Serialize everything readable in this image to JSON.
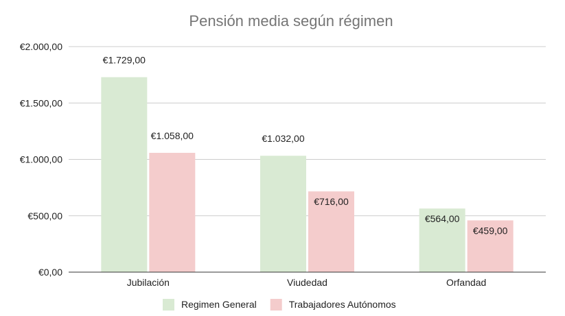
{
  "chart_data": {
    "type": "bar",
    "title": "Pensión media según régimen",
    "categories": [
      "Jubilación",
      "Viudedad",
      "Orfandad"
    ],
    "series": [
      {
        "name": "Regimen General",
        "values": [
          1729,
          1032,
          564
        ],
        "labels": [
          "€1.729,00",
          "€1.032,00",
          "€564,00"
        ],
        "color": "#d9ead3"
      },
      {
        "name": "Trabajadores Autónomos",
        "values": [
          1058,
          716,
          459
        ],
        "labels": [
          "€1.058,00",
          "€716,00",
          "€459,00"
        ],
        "color": "#f4cccc"
      }
    ],
    "ylim": [
      0,
      2000
    ],
    "yticks": [
      0,
      500,
      1000,
      1500,
      2000
    ],
    "ytick_labels": [
      "€0,00",
      "€500,00",
      "€1.000,00",
      "€1.500,00",
      "€2.000,00"
    ],
    "xlabel": "",
    "ylabel": "",
    "grid": true,
    "legend_position": "bottom"
  }
}
